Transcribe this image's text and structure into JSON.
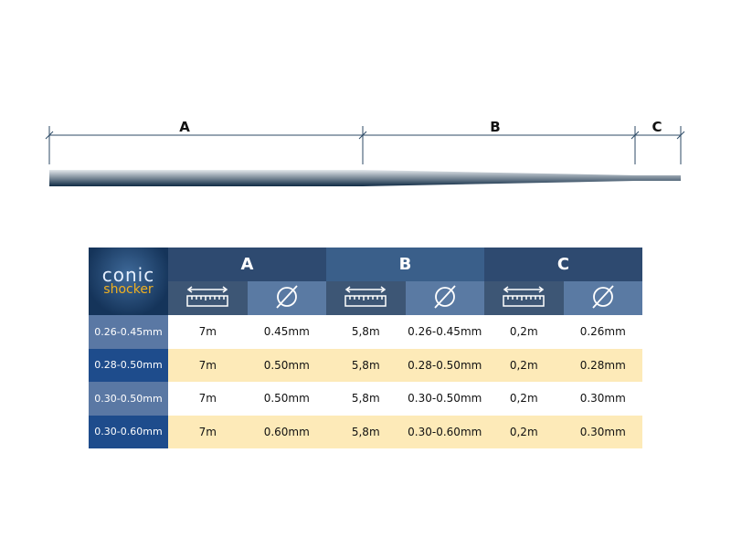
{
  "diagram": {
    "sections": [
      "A",
      "B",
      "C"
    ]
  },
  "table": {
    "logo": {
      "line1": "conic",
      "line2": "shocker"
    },
    "groups": [
      {
        "label": "A",
        "color": "#2e4a70"
      },
      {
        "label": "B",
        "color": "#3a5f8a"
      },
      {
        "label": "C",
        "color": "#2e4a70"
      }
    ],
    "icons": [
      "ruler-icon",
      "diameter-icon"
    ],
    "rows": [
      {
        "label": "0.26-0.45mm",
        "label_color": "#5a78a4",
        "bg": "#ffffff",
        "cells": [
          "7m",
          "0.45mm",
          "5,8m",
          "0.26-0.45mm",
          "0,2m",
          "0.26mm"
        ]
      },
      {
        "label": "0.28-0.50mm",
        "label_color": "#1e4c8c",
        "bg": "#fdeab8",
        "cells": [
          "7m",
          "0.50mm",
          "5,8m",
          "0.28-0.50mm",
          "0,2m",
          "0.28mm"
        ]
      },
      {
        "label": "0.30-0.50mm",
        "label_color": "#5a78a4",
        "bg": "#ffffff",
        "cells": [
          "7m",
          "0.50mm",
          "5,8m",
          "0.30-0.50mm",
          "0,2m",
          "0.30mm"
        ]
      },
      {
        "label": "0.30-0.60mm",
        "label_color": "#1e4c8c",
        "bg": "#fdeab8",
        "cells": [
          "7m",
          "0.60mm",
          "5,8m",
          "0.30-0.60mm",
          "0,2m",
          "0.30mm"
        ]
      }
    ]
  }
}
